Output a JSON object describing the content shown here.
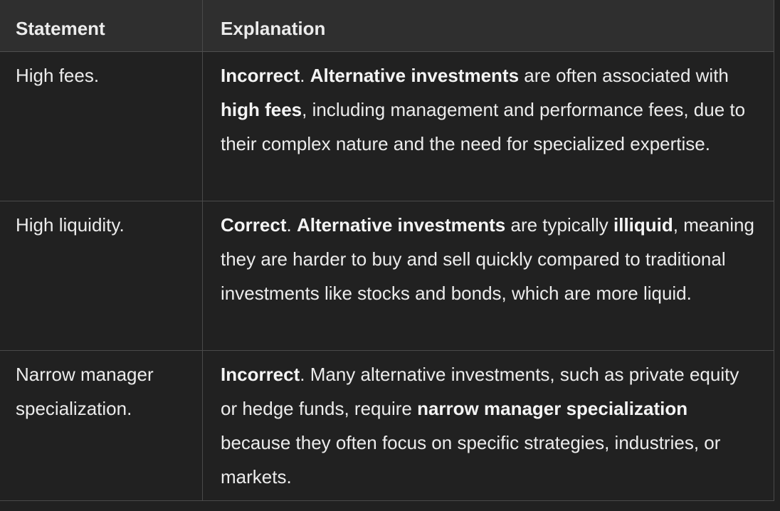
{
  "table": {
    "headers": [
      "Statement",
      "Explanation"
    ],
    "rows": [
      {
        "statement": "High fees.",
        "explanation": [
          {
            "text": "Incorrect",
            "bold": true
          },
          {
            "text": ". ",
            "bold": false
          },
          {
            "text": "Alternative investments",
            "bold": true
          },
          {
            "text": " are often associated with ",
            "bold": false
          },
          {
            "text": "high fees",
            "bold": true
          },
          {
            "text": ", including management and performance fees, due to their complex nature and the need for specialized expertise.",
            "bold": false
          }
        ]
      },
      {
        "statement": "High liquidity.",
        "explanation": [
          {
            "text": "Correct",
            "bold": true
          },
          {
            "text": ". ",
            "bold": false
          },
          {
            "text": "Alternative investments",
            "bold": true
          },
          {
            "text": " are typically ",
            "bold": false
          },
          {
            "text": "illiquid",
            "bold": true
          },
          {
            "text": ", meaning they are harder to buy and sell quickly compared to traditional investments like stocks and bonds, which are more liquid.",
            "bold": false
          }
        ]
      },
      {
        "statement": "Narrow manager specialization.",
        "explanation": [
          {
            "text": "Incorrect",
            "bold": true
          },
          {
            "text": ". Many alternative investments, such as private equity or hedge funds, require ",
            "bold": false
          },
          {
            "text": "narrow manager specialization",
            "bold": true
          },
          {
            "text": " because they often focus on specific strategies, industries, or markets.",
            "bold": false
          }
        ]
      }
    ]
  }
}
